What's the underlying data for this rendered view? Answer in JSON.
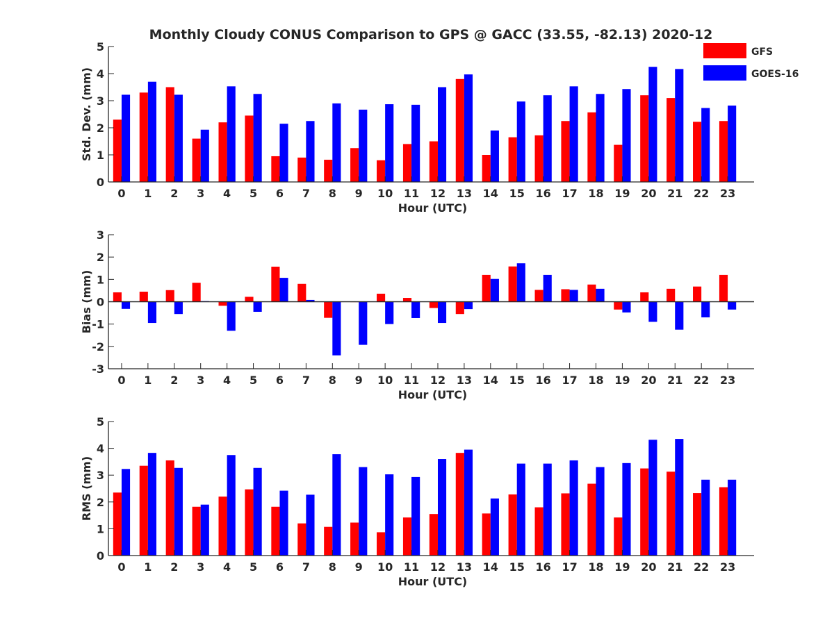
{
  "figure": {
    "title": "Monthly Cloudy CONUS Comparison to GPS @ GACC (33.55, -82.13) 2020-12",
    "legend": {
      "placement": "top-right",
      "entries": [
        {
          "label": "GFS",
          "color": "#ff0000"
        },
        {
          "label": "GOES-16",
          "color": "#0000ff"
        }
      ]
    }
  },
  "chart_data": [
    {
      "type": "bar",
      "xlabel": "Hour (UTC)",
      "ylabel": "Std. Dev. (mm)",
      "ylim": [
        0,
        5
      ],
      "yticks": [
        0,
        1,
        2,
        3,
        4,
        5
      ],
      "categories": [
        "0",
        "1",
        "2",
        "3",
        "4",
        "5",
        "6",
        "7",
        "8",
        "9",
        "10",
        "11",
        "12",
        "13",
        "14",
        "15",
        "16",
        "17",
        "18",
        "19",
        "20",
        "21",
        "22",
        "23"
      ],
      "series": [
        {
          "name": "GFS",
          "color": "#ff0000",
          "values": [
            2.3,
            3.3,
            3.5,
            1.6,
            2.2,
            2.45,
            0.95,
            0.9,
            0.82,
            1.25,
            0.8,
            1.4,
            1.5,
            3.8,
            1.0,
            1.65,
            1.72,
            2.25,
            2.57,
            1.37,
            3.2,
            3.1,
            2.22,
            2.25
          ]
        },
        {
          "name": "GOES-16",
          "color": "#0000ff",
          "values": [
            3.22,
            3.7,
            3.22,
            1.93,
            3.53,
            3.25,
            2.15,
            2.25,
            2.9,
            2.67,
            2.87,
            2.85,
            3.5,
            3.97,
            1.9,
            2.97,
            3.2,
            3.53,
            3.25,
            3.43,
            4.25,
            4.17,
            2.73,
            2.82
          ]
        }
      ]
    },
    {
      "type": "bar",
      "xlabel": "Hour (UTC)",
      "ylabel": "Bias (mm)",
      "ylim": [
        -3,
        3
      ],
      "yticks": [
        -3,
        -2,
        -1,
        0,
        1,
        2,
        3
      ],
      "zero_line": true,
      "categories": [
        "0",
        "1",
        "2",
        "3",
        "4",
        "5",
        "6",
        "7",
        "8",
        "9",
        "10",
        "11",
        "12",
        "13",
        "14",
        "15",
        "16",
        "17",
        "18",
        "19",
        "20",
        "21",
        "22",
        "23"
      ],
      "series": [
        {
          "name": "GFS",
          "color": "#ff0000",
          "values": [
            0.42,
            0.45,
            0.52,
            0.85,
            -0.18,
            0.22,
            1.57,
            0.8,
            -0.72,
            0.0,
            0.36,
            0.17,
            -0.28,
            -0.55,
            1.2,
            1.58,
            0.53,
            0.56,
            0.77,
            -0.35,
            0.42,
            0.58,
            0.68,
            1.2
          ]
        },
        {
          "name": "GOES-16",
          "color": "#0000ff",
          "values": [
            -0.32,
            -0.95,
            -0.55,
            0.03,
            -1.3,
            -0.45,
            1.07,
            0.08,
            -2.4,
            -1.93,
            -1.0,
            -0.73,
            -0.95,
            -0.33,
            1.02,
            1.72,
            1.2,
            0.53,
            0.58,
            -0.48,
            -0.9,
            -1.25,
            -0.7,
            -0.35
          ]
        }
      ]
    },
    {
      "type": "bar",
      "xlabel": "Hour (UTC)",
      "ylabel": "RMS (mm)",
      "ylim": [
        0,
        5
      ],
      "yticks": [
        0,
        1,
        2,
        3,
        4,
        5
      ],
      "categories": [
        "0",
        "1",
        "2",
        "3",
        "4",
        "5",
        "6",
        "7",
        "8",
        "9",
        "10",
        "11",
        "12",
        "13",
        "14",
        "15",
        "16",
        "17",
        "18",
        "19",
        "20",
        "21",
        "22",
        "23"
      ],
      "series": [
        {
          "name": "GFS",
          "color": "#ff0000",
          "values": [
            2.35,
            3.35,
            3.55,
            1.82,
            2.2,
            2.47,
            1.82,
            1.2,
            1.07,
            1.23,
            0.87,
            1.42,
            1.55,
            3.83,
            1.57,
            2.28,
            1.8,
            2.32,
            2.68,
            1.42,
            3.25,
            3.13,
            2.33,
            2.55
          ]
        },
        {
          "name": "GOES-16",
          "color": "#0000ff",
          "values": [
            3.23,
            3.83,
            3.27,
            1.9,
            3.75,
            3.27,
            2.42,
            2.27,
            3.78,
            3.3,
            3.03,
            2.93,
            3.6,
            3.95,
            2.13,
            3.43,
            3.43,
            3.55,
            3.3,
            3.45,
            4.32,
            4.35,
            2.83,
            2.83
          ]
        }
      ]
    }
  ]
}
